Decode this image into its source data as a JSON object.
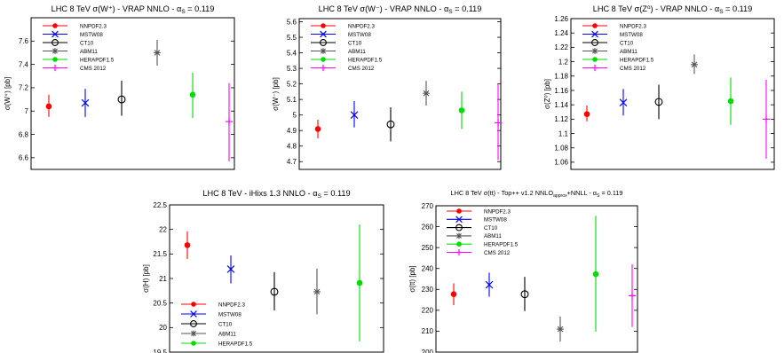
{
  "colors": {
    "NNPDF2.3": "#ff0000",
    "MSTW08": "#0000ff",
    "CT10": "#000000",
    "ABM11": "#555555",
    "HERAPDF1.5": "#00dd00",
    "CMS 2012": "#ff00ff"
  },
  "markers": {
    "NNPDF2.3": "dot",
    "MSTW08": "x",
    "CT10": "circle",
    "ABM11": "star",
    "HERAPDF1.5": "dot",
    "CMS 2012": "plus"
  },
  "chart_data": [
    {
      "id": "wplus",
      "type": "scatter",
      "title": "LHC 8 TeV σ(W⁺) - VRAP NNLO - α",
      "title_sub": "S",
      "title_tail": " = 0.119",
      "ylabel": "σ(W⁺) [pb]",
      "ylim": [
        6.5,
        7.8
      ],
      "yticks": [
        6.6,
        6.8,
        7,
        7.2,
        7.4,
        7.6
      ],
      "ytick_labels": [
        "6.6",
        "6.8",
        "7",
        "7.2",
        "7.4",
        "7.6"
      ],
      "legend_position": "top-left",
      "series": [
        {
          "name": "NNPDF2.3",
          "value": 7.04,
          "err_low": 6.95,
          "err_high": 7.14
        },
        {
          "name": "MSTW08",
          "value": 7.07,
          "err_low": 6.95,
          "err_high": 7.19
        },
        {
          "name": "CT10",
          "value": 7.1,
          "err_low": 6.96,
          "err_high": 7.26
        },
        {
          "name": "ABM11",
          "value": 7.5,
          "err_low": 7.39,
          "err_high": 7.61
        },
        {
          "name": "HERAPDF1.5",
          "value": 7.14,
          "err_low": 6.94,
          "err_high": 7.33
        },
        {
          "name": "CMS 2012",
          "value": 6.91,
          "err_low": 6.57,
          "err_high": 7.24
        }
      ]
    },
    {
      "id": "wminus",
      "type": "scatter",
      "title": "LHC 8 TeV σ(W⁻) - VRAP NNLO - α",
      "title_sub": "S",
      "title_tail": " = 0.119",
      "ylabel": "σ(W⁻) [pb]",
      "ylim": [
        4.65,
        5.62
      ],
      "yticks": [
        4.7,
        4.8,
        4.9,
        5,
        5.1,
        5.2,
        5.3,
        5.4,
        5.5,
        5.6
      ],
      "ytick_labels": [
        "4.7",
        "4.8",
        "4.9",
        "5",
        "5.1",
        "5.2",
        "5.3",
        "5.4",
        "5.5",
        "5.6"
      ],
      "legend_position": "top-left",
      "series": [
        {
          "name": "NNPDF2.3",
          "value": 4.91,
          "err_low": 4.85,
          "err_high": 4.97
        },
        {
          "name": "MSTW08",
          "value": 5.0,
          "err_low": 4.92,
          "err_high": 5.09
        },
        {
          "name": "CT10",
          "value": 4.94,
          "err_low": 4.83,
          "err_high": 5.05
        },
        {
          "name": "ABM11",
          "value": 5.14,
          "err_low": 5.06,
          "err_high": 5.22
        },
        {
          "name": "HERAPDF1.5",
          "value": 5.03,
          "err_low": 4.91,
          "err_high": 5.15
        },
        {
          "name": "CMS 2012",
          "value": 4.95,
          "err_low": 4.71,
          "err_high": 5.2
        }
      ]
    },
    {
      "id": "z0",
      "type": "scatter",
      "title": "LHC 8 TeV σ(Z⁰) - VRAP NNLO - α",
      "title_sub": "S",
      "title_tail": " = 0.119",
      "ylabel": "σ(Z⁰) [pb]",
      "ylim": [
        1.05,
        1.26
      ],
      "yticks": [
        1.06,
        1.08,
        1.1,
        1.12,
        1.14,
        1.16,
        1.18,
        1.2,
        1.22,
        1.24,
        1.26
      ],
      "ytick_labels": [
        "1.06",
        "1.08",
        "1.1",
        "1.12",
        "1.14",
        "1.16",
        "1.18",
        "1.2",
        "1.22",
        "1.24",
        "1.26"
      ],
      "legend_position": "top-left",
      "series": [
        {
          "name": "NNPDF2.3",
          "value": 1.127,
          "err_low": 1.117,
          "err_high": 1.139
        },
        {
          "name": "MSTW08",
          "value": 1.143,
          "err_low": 1.125,
          "err_high": 1.162
        },
        {
          "name": "CT10",
          "value": 1.144,
          "err_low": 1.12,
          "err_high": 1.168
        },
        {
          "name": "ABM11",
          "value": 1.196,
          "err_low": 1.183,
          "err_high": 1.21
        },
        {
          "name": "HERAPDF1.5",
          "value": 1.145,
          "err_low": 1.112,
          "err_high": 1.178
        },
        {
          "name": "CMS 2012",
          "value": 1.12,
          "err_low": 1.065,
          "err_high": 1.175
        }
      ]
    },
    {
      "id": "higgs",
      "type": "scatter",
      "title": "LHC 8 TeV - iHixs 1.3 NNLO - α",
      "title_sub": "S",
      "title_tail": " = 0.119",
      "ylabel": "σ(H) [pb]",
      "ylim": [
        19.5,
        22.5
      ],
      "yticks": [
        19.5,
        20,
        20.5,
        21,
        21.5,
        22,
        22.5
      ],
      "ytick_labels": [
        "19.5",
        "20",
        "20.5",
        "21",
        "21.5",
        "22",
        "22.5"
      ],
      "legend_position": "bottom-left",
      "series": [
        {
          "name": "NNPDF2.3",
          "value": 21.68,
          "err_low": 21.4,
          "err_high": 21.96
        },
        {
          "name": "MSTW08",
          "value": 21.19,
          "err_low": 20.9,
          "err_high": 21.47
        },
        {
          "name": "CT10",
          "value": 20.73,
          "err_low": 20.35,
          "err_high": 21.13
        },
        {
          "name": "ABM11",
          "value": 20.73,
          "err_low": 20.27,
          "err_high": 21.2
        },
        {
          "name": "HERAPDF1.5",
          "value": 20.91,
          "err_low": 19.72,
          "err_high": 22.1
        }
      ]
    },
    {
      "id": "ttbar",
      "type": "scatter",
      "title": "LHC 8 TeV σ(tt) - Top++ v1.2 NNLO",
      "title_sub": "approx",
      "title_tail": "+NNLL - α",
      "title_sub2": "S",
      "title_tail2": " = 0.119",
      "ylabel": "σ(tt) [pb]",
      "ylim": [
        200,
        270
      ],
      "yticks": [
        200,
        210,
        220,
        230,
        240,
        250,
        260,
        270
      ],
      "ytick_labels": [
        "200",
        "210",
        "220",
        "230",
        "240",
        "250",
        "260",
        "270"
      ],
      "legend_position": "top-left",
      "series": [
        {
          "name": "NNPDF2.3",
          "value": 227.7,
          "err_low": 222.5,
          "err_high": 232.9
        },
        {
          "name": "MSTW08",
          "value": 232.2,
          "err_low": 226.5,
          "err_high": 238.0
        },
        {
          "name": "CT10",
          "value": 227.7,
          "err_low": 219.6,
          "err_high": 236.0
        },
        {
          "name": "ABM11",
          "value": 211.0,
          "err_low": 205.0,
          "err_high": 217.0
        },
        {
          "name": "HERAPDF1.5",
          "value": 237.3,
          "err_low": 209.8,
          "err_high": 265.2
        },
        {
          "name": "CMS 2012",
          "value": 227.0,
          "err_low": 212.0,
          "err_high": 242.0
        }
      ]
    }
  ]
}
